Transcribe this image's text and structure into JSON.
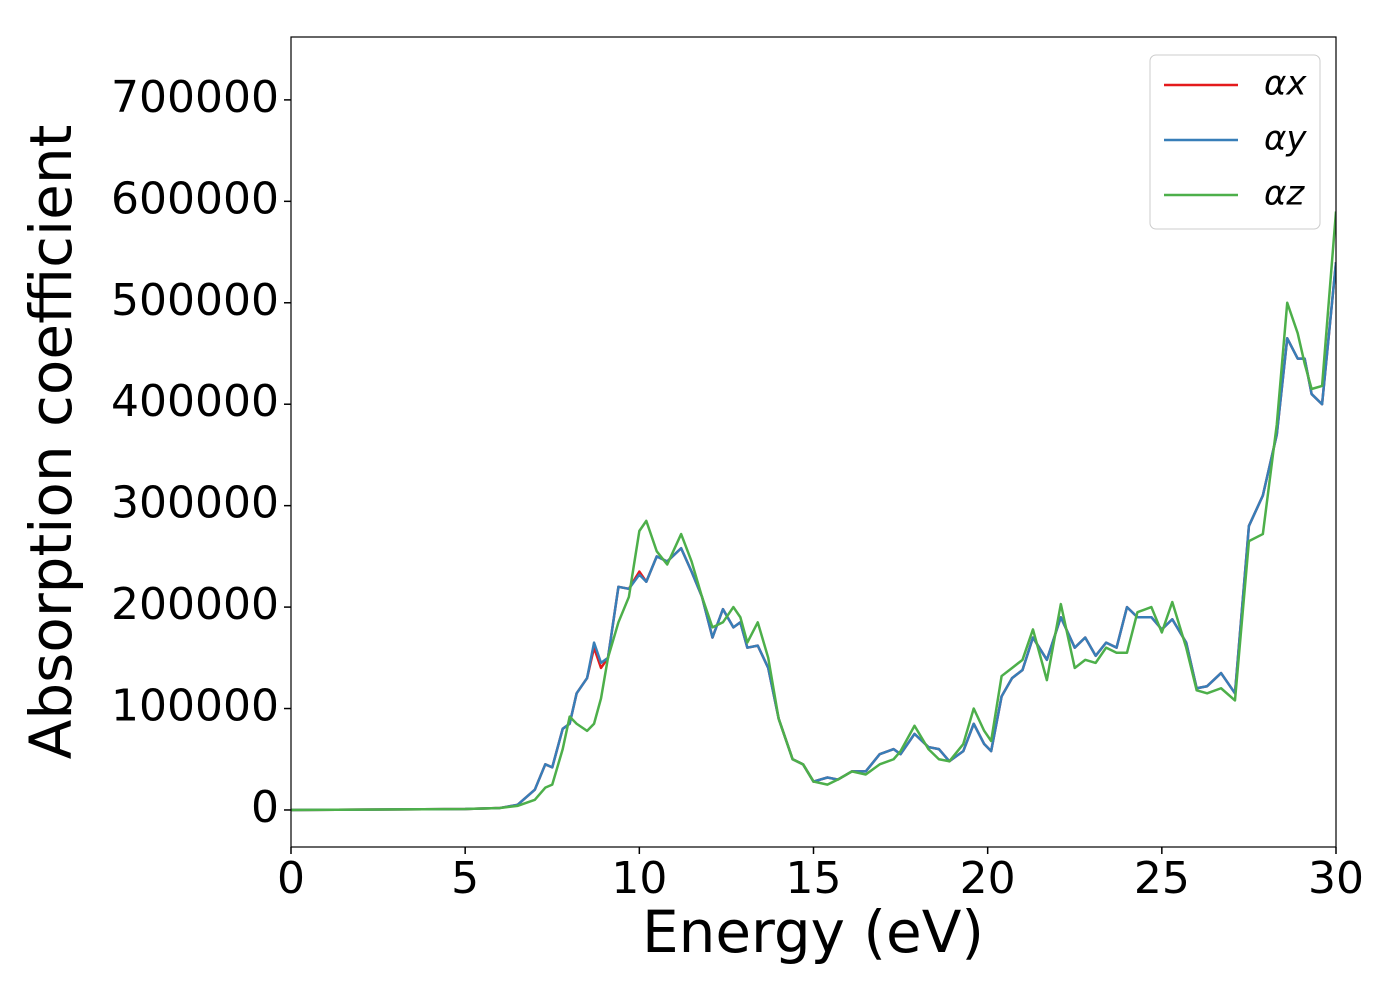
{
  "chart_data": {
    "type": "line",
    "xlabel": "Energy (eV)",
    "ylabel": "Absorption coefficient",
    "xlim": [
      0,
      30
    ],
    "ylim": [
      -36500,
      762000
    ],
    "xticks": [
      0,
      5,
      10,
      15,
      20,
      25,
      30
    ],
    "yticks": [
      0,
      100000,
      200000,
      300000,
      400000,
      500000,
      600000,
      700000
    ],
    "legend": "upper right",
    "grid": false,
    "x": [
      0,
      5,
      6,
      6.5,
      7,
      7.3,
      7.5,
      7.8,
      8.0,
      8.2,
      8.5,
      8.7,
      8.9,
      9.1,
      9.4,
      9.7,
      10.0,
      10.2,
      10.5,
      10.8,
      11.2,
      11.5,
      11.8,
      12.1,
      12.4,
      12.7,
      12.9,
      13.1,
      13.4,
      13.7,
      14.0,
      14.4,
      14.7,
      15.0,
      15.4,
      15.7,
      16.1,
      16.5,
      16.9,
      17.3,
      17.5,
      17.9,
      18.3,
      18.6,
      18.9,
      19.3,
      19.6,
      19.9,
      20.1,
      20.4,
      20.7,
      21.0,
      21.3,
      21.7,
      22.1,
      22.5,
      22.8,
      23.1,
      23.4,
      23.7,
      24.0,
      24.3,
      24.7,
      25.0,
      25.3,
      25.7,
      26.0,
      26.3,
      26.7,
      27.1,
      27.5,
      27.9,
      28.3,
      28.6,
      28.9,
      29.1,
      29.3,
      29.6,
      30.0
    ],
    "series": [
      {
        "name": "αx",
        "color": "#e41a1c",
        "values": [
          0,
          1000,
          2000,
          5000,
          20000,
          45000,
          42000,
          80000,
          85000,
          115000,
          130000,
          160000,
          140000,
          150000,
          220000,
          218000,
          235000,
          225000,
          250000,
          245000,
          258000,
          235000,
          210000,
          170000,
          198000,
          180000,
          185000,
          160000,
          162000,
          140000,
          90000,
          50000,
          45000,
          28000,
          32000,
          30000,
          38000,
          38000,
          55000,
          60000,
          55000,
          75000,
          62000,
          60000,
          48000,
          58000,
          85000,
          65000,
          58000,
          112000,
          130000,
          138000,
          170000,
          148000,
          190000,
          160000,
          170000,
          152000,
          165000,
          160000,
          200000,
          190000,
          190000,
          178000,
          188000,
          165000,
          120000,
          122000,
          135000,
          115000,
          280000,
          310000,
          370000,
          465000,
          445000,
          445000,
          410000,
          400000,
          540000
        ]
      },
      {
        "name": "αy",
        "color": "#377eb8",
        "values": [
          0,
          1000,
          2000,
          5000,
          20000,
          45000,
          42000,
          80000,
          85000,
          115000,
          130000,
          165000,
          145000,
          150000,
          220000,
          218000,
          232000,
          225000,
          250000,
          245000,
          258000,
          235000,
          210000,
          170000,
          198000,
          180000,
          185000,
          160000,
          162000,
          140000,
          90000,
          50000,
          45000,
          28000,
          32000,
          30000,
          38000,
          38000,
          55000,
          60000,
          55000,
          75000,
          62000,
          60000,
          48000,
          58000,
          85000,
          65000,
          58000,
          112000,
          130000,
          138000,
          170000,
          148000,
          190000,
          160000,
          170000,
          152000,
          165000,
          160000,
          200000,
          190000,
          190000,
          178000,
          188000,
          165000,
          120000,
          122000,
          135000,
          115000,
          280000,
          310000,
          370000,
          465000,
          445000,
          445000,
          410000,
          400000,
          540000
        ]
      },
      {
        "name": "αz",
        "color": "#4daf4a",
        "values": [
          0,
          1000,
          2000,
          4000,
          10000,
          22000,
          25000,
          60000,
          92000,
          85000,
          78000,
          85000,
          110000,
          150000,
          185000,
          210000,
          275000,
          285000,
          255000,
          242000,
          272000,
          245000,
          210000,
          180000,
          185000,
          200000,
          190000,
          165000,
          185000,
          150000,
          90000,
          50000,
          45000,
          28000,
          25000,
          30000,
          38000,
          35000,
          45000,
          50000,
          58000,
          83000,
          60000,
          50000,
          48000,
          65000,
          100000,
          78000,
          68000,
          132000,
          140000,
          148000,
          178000,
          128000,
          203000,
          140000,
          148000,
          145000,
          160000,
          155000,
          155000,
          195000,
          200000,
          175000,
          205000,
          160000,
          118000,
          115000,
          120000,
          108000,
          265000,
          272000,
          380000,
          500000,
          470000,
          440000,
          415000,
          418000,
          590000
        ]
      }
    ]
  }
}
